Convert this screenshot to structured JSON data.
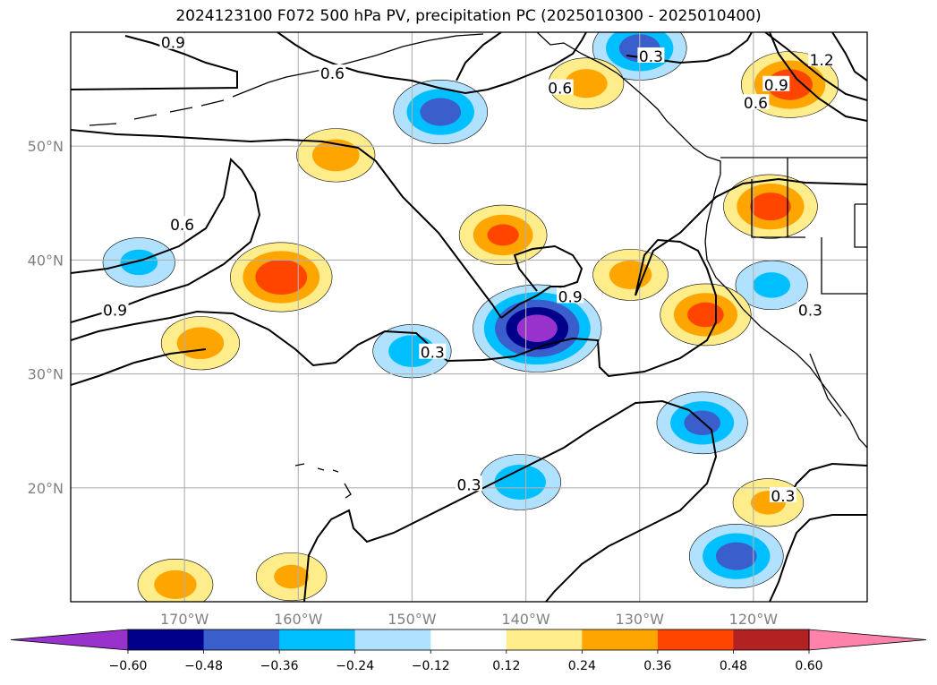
{
  "title": "2024123100 F072 500 hPa PV, precipitation PC (2025010300 - 2025010400)",
  "chart_data": {
    "type": "map",
    "lon_range": [
      -180,
      -110
    ],
    "lat_range": [
      10,
      60
    ],
    "lon_ticks": [
      {
        "value": -170,
        "label": "170°W"
      },
      {
        "value": -160,
        "label": "160°W"
      },
      {
        "value": -150,
        "label": "150°W"
      },
      {
        "value": -140,
        "label": "140°W"
      },
      {
        "value": -130,
        "label": "130°W"
      },
      {
        "value": -120,
        "label": "120°W"
      }
    ],
    "lat_ticks": [
      {
        "value": 20,
        "label": "20°N"
      },
      {
        "value": 30,
        "label": "30°N"
      },
      {
        "value": 40,
        "label": "40°N"
      },
      {
        "value": 50,
        "label": "50°N"
      }
    ],
    "grid": true,
    "pv_contour_levels": [
      0.3,
      0.6,
      0.9,
      1.2
    ],
    "contour_labels": [
      {
        "text": "0.9",
        "lon": -171,
        "lat": 59
      },
      {
        "text": "0.6",
        "lon": -157,
        "lat": 56.3
      },
      {
        "text": "0.6",
        "lon": -137,
        "lat": 55
      },
      {
        "text": "0.3",
        "lon": -129,
        "lat": 57.8
      },
      {
        "text": "1.2",
        "lon": -114,
        "lat": 57.5
      },
      {
        "text": "0.9",
        "lon": -118,
        "lat": 55.3
      },
      {
        "text": "0.6",
        "lon": -119.8,
        "lat": 53.7
      },
      {
        "text": "0.6",
        "lon": -170.2,
        "lat": 43
      },
      {
        "text": "0.9",
        "lon": -176.1,
        "lat": 35.5
      },
      {
        "text": "0.9",
        "lon": -136.1,
        "lat": 36.7
      },
      {
        "text": "0.3",
        "lon": -148.2,
        "lat": 31.8
      },
      {
        "text": "0.3",
        "lon": -145,
        "lat": 20.2
      },
      {
        "text": "0.3",
        "lon": -117.4,
        "lat": 19.2
      },
      {
        "text": "0.3",
        "lon": -115,
        "lat": 35.5
      }
    ],
    "precip_features": [
      {
        "sign": "negative",
        "lon": -139,
        "lat": 34,
        "peak": -0.62
      },
      {
        "sign": "negative",
        "lon": -147.5,
        "lat": 53,
        "peak": -0.4
      },
      {
        "sign": "negative",
        "lon": -130,
        "lat": 58.6,
        "peak": -0.4
      },
      {
        "sign": "negative",
        "lon": -124.5,
        "lat": 25.7,
        "peak": -0.38
      },
      {
        "sign": "negative",
        "lon": -121.5,
        "lat": 14,
        "peak": -0.4
      },
      {
        "sign": "negative",
        "lon": -140.5,
        "lat": 20.5,
        "peak": -0.32
      },
      {
        "sign": "negative",
        "lon": -150,
        "lat": 32,
        "peak": -0.3
      },
      {
        "sign": "negative",
        "lon": -174,
        "lat": 39.8,
        "peak": -0.26
      },
      {
        "sign": "negative",
        "lon": -118.4,
        "lat": 37.8,
        "peak": -0.26
      },
      {
        "sign": "positive",
        "lon": -161.5,
        "lat": 38.5,
        "peak": 0.45
      },
      {
        "sign": "positive",
        "lon": -116.8,
        "lat": 55.4,
        "peak": 0.42
      },
      {
        "sign": "positive",
        "lon": -118.5,
        "lat": 44.7,
        "peak": 0.4
      },
      {
        "sign": "positive",
        "lon": -124.2,
        "lat": 35.2,
        "peak": 0.38
      },
      {
        "sign": "positive",
        "lon": -156.7,
        "lat": 49.2,
        "peak": 0.3
      },
      {
        "sign": "positive",
        "lon": -168.6,
        "lat": 32.7,
        "peak": 0.3
      },
      {
        "sign": "positive",
        "lon": -142,
        "lat": 42.2,
        "peak": 0.36
      },
      {
        "sign": "positive",
        "lon": -134.7,
        "lat": 55.5,
        "peak": 0.28
      },
      {
        "sign": "positive",
        "lon": -130.8,
        "lat": 38.7,
        "peak": 0.28
      },
      {
        "sign": "positive",
        "lon": -170.8,
        "lat": 11.5,
        "peak": 0.28
      },
      {
        "sign": "positive",
        "lon": -118.7,
        "lat": 18.7,
        "peak": 0.25
      },
      {
        "sign": "positive",
        "lon": -160.6,
        "lat": 12.2,
        "peak": 0.25
      }
    ],
    "colorbar": {
      "colors": [
        "#9932cc",
        "#00008b",
        "#3a5fcd",
        "#00bfff",
        "#b0e2ff",
        "#ffffff",
        "#ffec8b",
        "#ffa500",
        "#ff4500",
        "#b22222",
        "#ff82ab"
      ],
      "tick_values": [
        "−0.60",
        "−0.48",
        "−0.36",
        "−0.24",
        "−0.12",
        "0.12",
        "0.24",
        "0.36",
        "0.48",
        "0.60"
      ],
      "extend": "both"
    }
  }
}
